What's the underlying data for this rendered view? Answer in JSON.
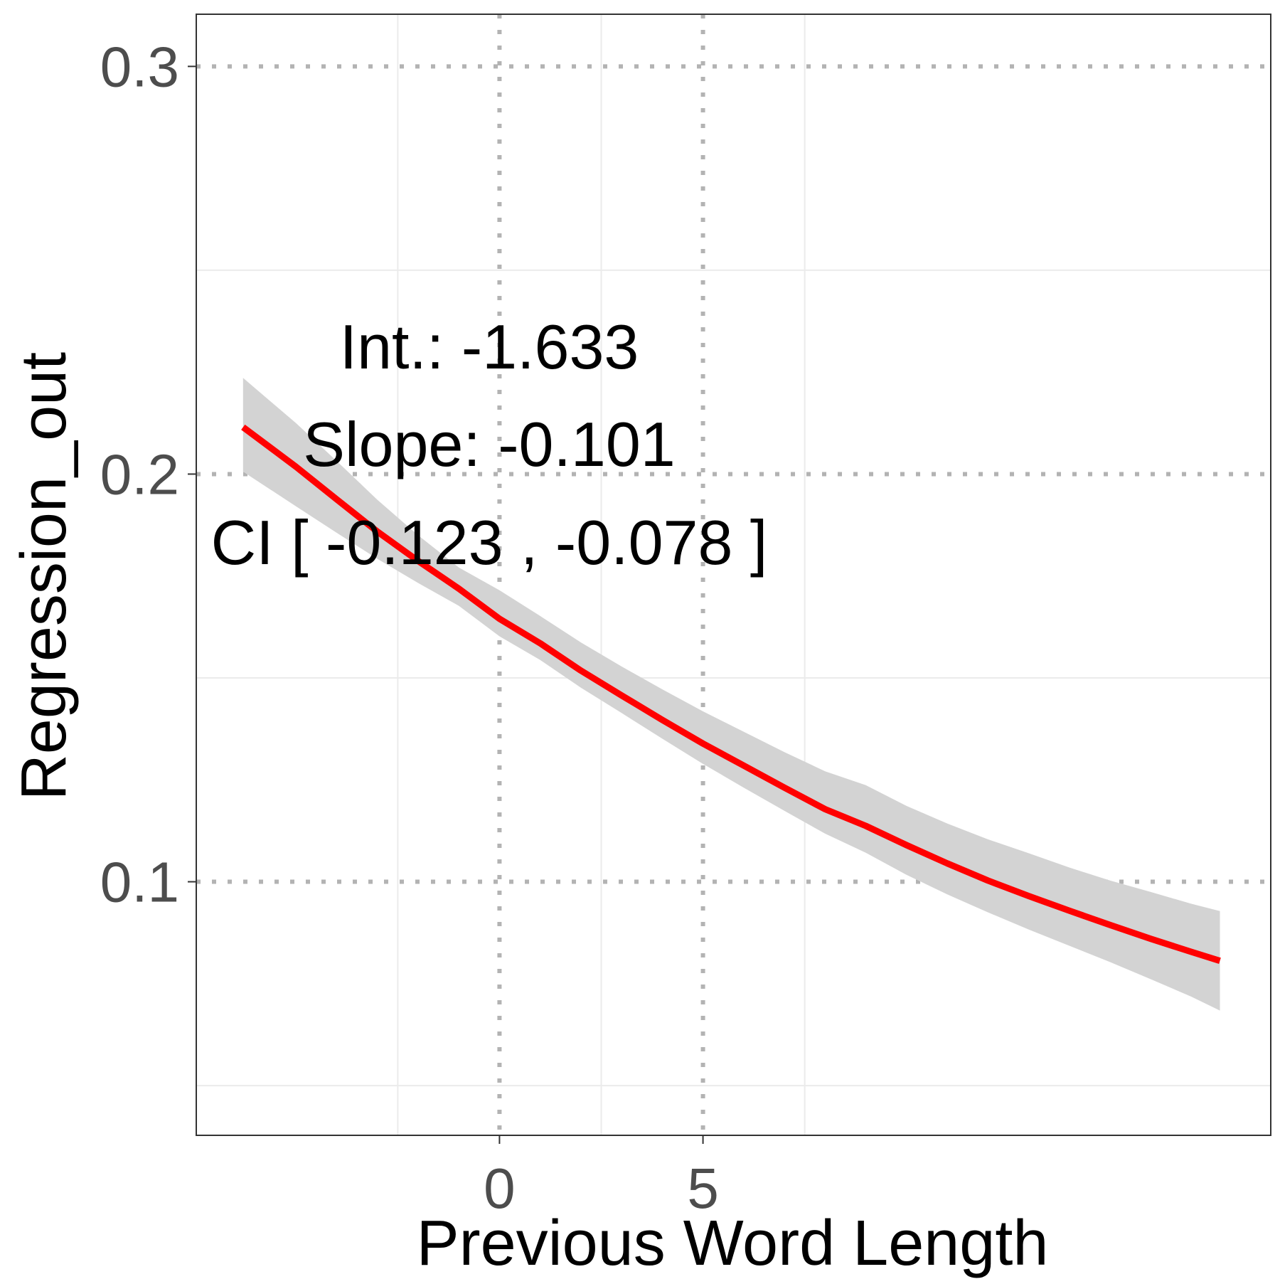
{
  "chart_data": {
    "type": "line",
    "title": "",
    "xlabel": "Previous Word Length",
    "ylabel": "Regression_out",
    "xlim": [
      -7.45,
      18.95
    ],
    "ylim": [
      0.0378,
      0.3128
    ],
    "x_ticks": [
      0,
      5
    ],
    "x_tick_labels": [
      "0",
      "5"
    ],
    "x_minor_grid": [
      -2.5,
      2.5,
      7.5
    ],
    "y_ticks": [
      0.1,
      0.2,
      0.3
    ],
    "y_tick_labels": [
      "0.1",
      "0.2",
      "0.3"
    ],
    "y_minor_grid": [
      0.05,
      0.15,
      0.25
    ],
    "grid": true,
    "major_grid_style": "dotted",
    "series": [
      {
        "color": "#ff0000",
        "x": [
          -6.3,
          -5,
          -4,
          -3,
          -2,
          -1,
          0,
          1,
          2,
          3,
          4,
          5,
          6,
          7,
          8,
          9,
          10,
          11,
          12,
          13,
          14,
          15,
          16,
          17,
          17.7
        ],
        "y": [
          0.2115,
          0.2018,
          0.1938,
          0.1859,
          0.1787,
          0.1719,
          0.1645,
          0.1585,
          0.1518,
          0.1457,
          0.1397,
          0.1339,
          0.1285,
          0.1231,
          0.1178,
          0.1137,
          0.109,
          0.1045,
          0.1003,
          0.0965,
          0.0929,
          0.0894,
          0.086,
          0.0828,
          0.0806
        ],
        "ci_lower": [
          0.2006,
          0.1921,
          0.1856,
          0.1792,
          0.1733,
          0.1677,
          0.1602,
          0.1544,
          0.1476,
          0.1414,
          0.1351,
          0.1289,
          0.1231,
          0.1174,
          0.1118,
          0.1071,
          0.1017,
          0.0969,
          0.0925,
          0.0883,
          0.0843,
          0.0803,
          0.0761,
          0.0718,
          0.0684
        ],
        "ci_upper": [
          0.2236,
          0.2125,
          0.2032,
          0.1937,
          0.185,
          0.1771,
          0.1715,
          0.1652,
          0.1587,
          0.1528,
          0.1472,
          0.1418,
          0.1368,
          0.1318,
          0.1271,
          0.1237,
          0.1186,
          0.1143,
          0.1104,
          0.107,
          0.1035,
          0.1003,
          0.0975,
          0.0946,
          0.0928
        ]
      }
    ],
    "ci_color": "#d3d3d3",
    "annotations": [
      "Int.: -1.633",
      "Slope: -0.101",
      "CI [ -0.123 , -0.078 ]"
    ]
  }
}
